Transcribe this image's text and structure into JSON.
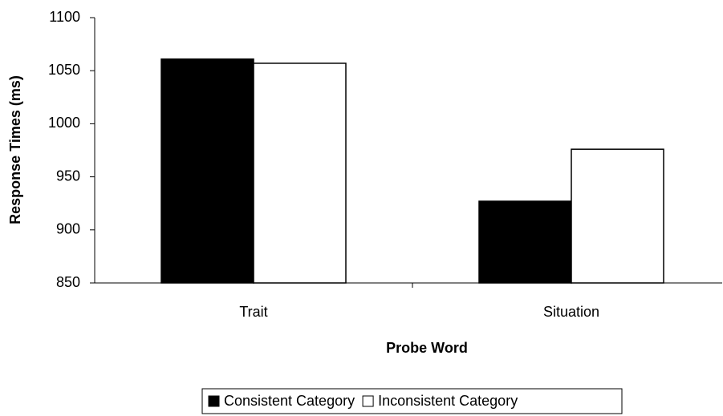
{
  "chart_data": {
    "type": "bar",
    "x_label": "Probe Word",
    "y_label": "Response Times (ms)",
    "categories": [
      "Trait",
      "Situation"
    ],
    "series": [
      {
        "name": "Consistent Category",
        "color": "#000000",
        "values": [
          1061,
          927
        ]
      },
      {
        "name": "Inconsistent Category",
        "color": "#ffffff",
        "values": [
          1057,
          976
        ]
      }
    ],
    "ylim": [
      850,
      1100
    ],
    "yticks": [
      850,
      900,
      950,
      1000,
      1050,
      1100
    ],
    "legend": "bottom"
  }
}
